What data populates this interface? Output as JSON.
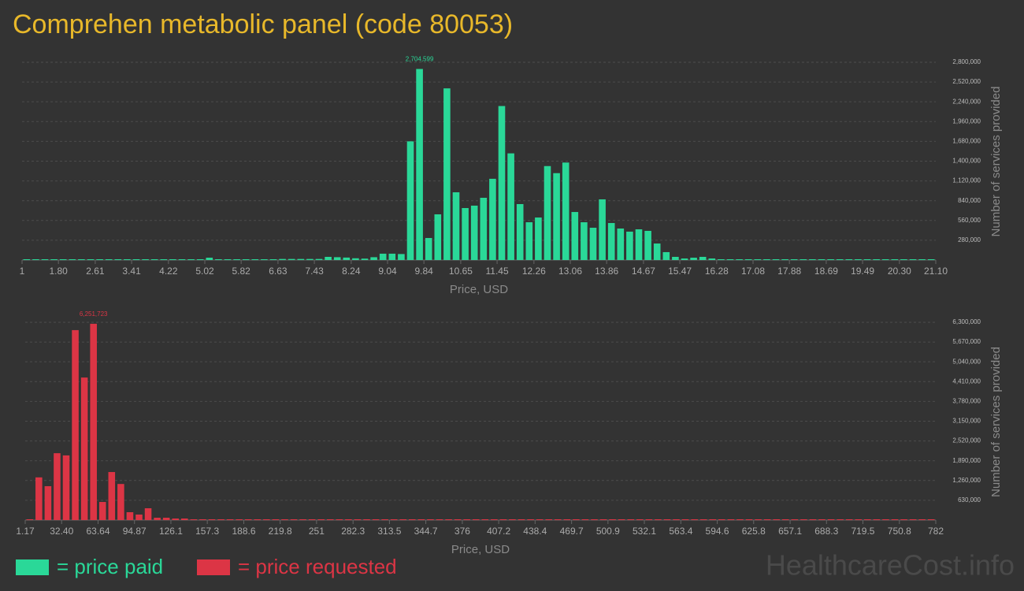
{
  "title": "Comprehen metabolic panel (code 80053)",
  "watermark": "HealthcareCost.info",
  "chart_data": [
    {
      "type": "histogram",
      "xlabel": "Price, USD",
      "ylabel": "Number of services provided",
      "grid": true,
      "xlim": [
        1,
        21.1
      ],
      "ylim": [
        0,
        2900000
      ],
      "xticks": [
        1,
        {
          "value": 1.8,
          "label": "1.80"
        },
        2.61,
        3.41,
        4.22,
        5.02,
        5.82,
        6.63,
        7.43,
        8.24,
        9.04,
        9.84,
        10.65,
        11.45,
        12.26,
        13.06,
        13.86,
        14.67,
        15.47,
        16.28,
        17.08,
        17.88,
        18.69,
        19.49,
        {
          "value": 20.3,
          "label": "20.30"
        },
        {
          "value": 21.1,
          "label": "21.10"
        }
      ],
      "yticks": [
        {
          "value": 280000,
          "label": "280,000"
        },
        {
          "value": 560000,
          "label": "560,000"
        },
        {
          "value": 840000,
          "label": "840,000"
        },
        {
          "value": 1120000,
          "label": "1,120,000"
        },
        {
          "value": 1400000,
          "label": "1,400,000"
        },
        {
          "value": 1680000,
          "label": "1,680,000"
        },
        {
          "value": 1960000,
          "label": "1,960,000"
        },
        {
          "value": 2240000,
          "label": "2,240,000"
        },
        {
          "value": 2520000,
          "label": "2,520,000"
        },
        {
          "value": 2800000,
          "label": "2,800,000"
        }
      ],
      "bins": [
        1,
        1.201,
        1.402,
        1.603,
        1.804,
        2.005,
        2.206,
        2.407,
        2.608,
        2.809,
        3.01,
        3.211,
        3.412,
        3.613,
        3.814,
        4.015,
        4.216,
        4.417,
        4.618,
        4.819,
        5.02,
        5.221,
        5.422,
        5.623,
        5.824,
        6.025,
        6.226,
        6.427,
        6.628,
        6.829,
        7.03,
        7.231,
        7.432,
        7.633,
        7.834,
        8.035,
        8.236,
        8.437,
        8.638,
        8.839,
        9.04,
        9.241,
        9.442,
        9.643,
        9.844,
        10.045,
        10.246,
        10.447,
        10.648,
        10.849,
        11.05,
        11.251,
        11.452,
        11.653,
        11.854,
        12.055,
        12.256,
        12.457,
        12.658,
        12.859,
        13.06,
        13.261,
        13.462,
        13.663,
        13.864,
        14.065,
        14.266,
        14.467,
        14.668,
        14.869,
        15.07,
        15.271,
        15.472,
        15.673,
        15.874,
        16.075,
        16.276,
        16.477,
        16.678,
        16.879,
        17.08,
        17.281,
        17.482,
        17.683,
        17.884,
        18.085,
        18.286,
        18.487,
        18.688,
        18.889,
        19.09,
        19.291,
        19.492,
        19.693,
        19.894,
        20.095,
        20.296,
        20.497,
        20.698,
        20.899,
        21.1
      ],
      "series": [
        {
          "name": "= price paid",
          "color": "#2ad898",
          "values": [
            5000,
            5000,
            5000,
            5000,
            5000,
            5000,
            5000,
            5000,
            0,
            0,
            5000,
            5000,
            5000,
            5000,
            5000,
            5000,
            5000,
            5000,
            5000,
            5000,
            33000,
            8000,
            8000,
            8000,
            8000,
            8000,
            8000,
            8000,
            15000,
            15000,
            15000,
            15000,
            15000,
            45000,
            40000,
            35000,
            25000,
            20000,
            40000,
            90000,
            90000,
            85000,
            1680000,
            2704599,
            312000,
            647000,
            2430000,
            959000,
            736000,
            770000,
            881000,
            1150000,
            2180000,
            1510000,
            792000,
            535000,
            602000,
            1330000,
            1230000,
            1380000,
            680000,
            535000,
            457000,
            859000,
            524000,
            446000,
            402000,
            435000,
            413000,
            234000,
            112000,
            45000,
            22000,
            33000,
            45000,
            22000,
            5000,
            5000,
            5000,
            5000,
            5000,
            5000,
            5000,
            5000,
            5000,
            5000,
            5000,
            5000,
            5000,
            5000,
            5000,
            5000,
            5000,
            5000,
            5000,
            5000,
            5000,
            5000,
            5000,
            5000
          ],
          "value_labels": [
            null,
            null,
            null,
            null,
            null,
            null,
            null,
            null,
            null,
            null,
            null,
            null,
            null,
            null,
            null,
            null,
            null,
            null,
            null,
            null,
            null,
            null,
            null,
            null,
            null,
            null,
            null,
            null,
            null,
            null,
            null,
            null,
            null,
            null,
            null,
            null,
            null,
            null,
            null,
            null,
            null,
            null,
            null,
            "2,704,599",
            null,
            null,
            null,
            null,
            null,
            null,
            null,
            null,
            null,
            null,
            null,
            null,
            null,
            null,
            null,
            null,
            null,
            null,
            null,
            null,
            null,
            null,
            null,
            null,
            null,
            null,
            null,
            null,
            null,
            null,
            null,
            null,
            null,
            null,
            null,
            null,
            null,
            null,
            null,
            null,
            null,
            null,
            null,
            null,
            null,
            null,
            null,
            null,
            null,
            null,
            null,
            null,
            null,
            null,
            null,
            null
          ]
        }
      ]
    },
    {
      "type": "histogram",
      "xlabel": "Price, USD",
      "ylabel": "Number of services provided",
      "grid": true,
      "xlim": [
        1.17,
        782
      ],
      "ylim": [
        0,
        6500000
      ],
      "xticks": [
        1.17,
        {
          "value": 32.4,
          "label": "32.40"
        },
        63.64,
        94.87,
        126.1,
        157.3,
        188.6,
        219.8,
        251,
        282.3,
        313.5,
        344.7,
        376,
        407.2,
        438.4,
        469.7,
        500.9,
        532.1,
        563.4,
        594.6,
        625.8,
        657.1,
        688.3,
        719.5,
        750.8,
        782
      ],
      "yticks": [
        {
          "value": 630000,
          "label": "630,000"
        },
        {
          "value": 1260000,
          "label": "1,260,000"
        },
        {
          "value": 1890000,
          "label": "1,890,000"
        },
        {
          "value": 2520000,
          "label": "2,520,000"
        },
        {
          "value": 3150000,
          "label": "3,150,000"
        },
        {
          "value": 3780000,
          "label": "3,780,000"
        },
        {
          "value": 4410000,
          "label": "4,410,000"
        },
        {
          "value": 5040000,
          "label": "5,040,000"
        },
        {
          "value": 5670000,
          "label": "5,670,000"
        },
        {
          "value": 6300000,
          "label": "6,300,000"
        }
      ],
      "bins": [
        1.17,
        8.98,
        16.79,
        24.59,
        32.4,
        40.21,
        48.02,
        55.83,
        63.64,
        71.44,
        79.25,
        87.06,
        94.87,
        102.68,
        110.49,
        118.29,
        126.1,
        133.91,
        141.72,
        149.53,
        157.34,
        165.14,
        172.95,
        180.76,
        188.57,
        196.38,
        204.19,
        211.99,
        219.8,
        227.61,
        235.42,
        243.23,
        251.04,
        258.84,
        266.65,
        274.46,
        282.27,
        290.08,
        297.89,
        305.69,
        313.5,
        321.31,
        329.12,
        336.93,
        344.74,
        352.54,
        360.35,
        368.16,
        375.97,
        383.78,
        391.59,
        399.39,
        407.2,
        415.01,
        422.82,
        430.63,
        438.44,
        446.24,
        454.05,
        461.86,
        469.67,
        477.48,
        485.29,
        493.09,
        500.9,
        508.71,
        516.52,
        524.33,
        532.14,
        539.94,
        547.75,
        555.56,
        563.37,
        571.18,
        578.99,
        586.79,
        594.6,
        602.41,
        610.22,
        618.03,
        625.84,
        633.64,
        641.45,
        649.26,
        657.07,
        664.88,
        672.69,
        680.49,
        688.3,
        696.11,
        703.92,
        711.73,
        719.54,
        727.34,
        735.15,
        742.96,
        750.77,
        758.58,
        766.39,
        774.19,
        782
      ],
      "series": [
        {
          "name": "= price requested",
          "color": "#dc3545",
          "values": [
            10000,
            1360000,
            1080000,
            2130000,
            2060000,
            6050000,
            4540000,
            6251723,
            577000,
            1530000,
            1150000,
            251000,
            176000,
            377000,
            75000,
            75000,
            50000,
            50000,
            25000,
            20000,
            10000,
            10000,
            10000,
            10000,
            10000,
            10000,
            10000,
            10000,
            10000,
            10000,
            10000,
            5000,
            5000,
            5000,
            0,
            5000,
            5000,
            5000,
            0,
            5000,
            5000,
            0,
            5000,
            5000,
            0,
            5000,
            0,
            5000,
            5000,
            0,
            0,
            5000,
            0,
            0,
            5000,
            0,
            5000,
            0,
            0,
            0,
            5000,
            0,
            0,
            0,
            0,
            0,
            0,
            0,
            0,
            0,
            0,
            0,
            0,
            5000,
            0,
            0,
            0,
            0,
            0,
            0,
            0,
            0,
            0,
            0,
            5000,
            0,
            0,
            0,
            0,
            0,
            0,
            0,
            0,
            0,
            0,
            0,
            0,
            0,
            0,
            5000
          ],
          "value_labels": [
            null,
            null,
            null,
            null,
            null,
            null,
            null,
            "6,251,723",
            null,
            null,
            null,
            null,
            null,
            null,
            null,
            null,
            null,
            null,
            null,
            null,
            null,
            null,
            null,
            null,
            null,
            null,
            null,
            null,
            null,
            null,
            null,
            null,
            null,
            null,
            null,
            null,
            null,
            null,
            null,
            null,
            null,
            null,
            null,
            null,
            null,
            null,
            null,
            null,
            null,
            null,
            null,
            null,
            null,
            null,
            null,
            null,
            null,
            null,
            null,
            null,
            null,
            null,
            null,
            null,
            null,
            null,
            null,
            null,
            null,
            null,
            null,
            null,
            null,
            null,
            null,
            null,
            null,
            null,
            null,
            null,
            null,
            null,
            null,
            null,
            null,
            null,
            null,
            null,
            null,
            null,
            null,
            null,
            null,
            null,
            null,
            null,
            null,
            null,
            null,
            null
          ]
        }
      ]
    }
  ]
}
